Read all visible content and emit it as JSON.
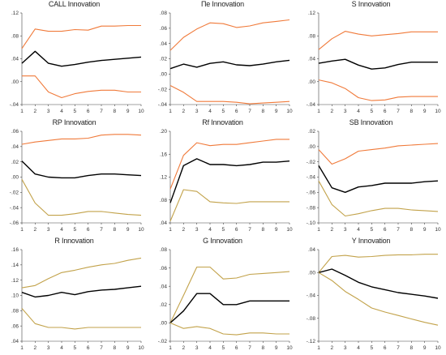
{
  "colors": {
    "response": "#000000",
    "bands_orange": "#f07a3a",
    "bands_olive": "#c2a24a"
  },
  "chart_data": [
    {
      "type": "line",
      "title": "CALL Innovation",
      "x": [
        1,
        2,
        3,
        4,
        5,
        6,
        7,
        8,
        9,
        10
      ],
      "ylim": [
        -0.04,
        0.12
      ],
      "yticks": [
        ".12",
        ".08",
        ".04",
        ".00",
        "-.04"
      ],
      "ytick_values": [
        0.12,
        0.08,
        0.04,
        0.0,
        -0.04
      ],
      "band_color": "orange",
      "series": [
        {
          "role": "upper",
          "values": [
            0.058,
            0.092,
            0.088,
            0.088,
            0.091,
            0.09,
            0.097,
            0.097,
            0.098,
            0.098
          ]
        },
        {
          "role": "response",
          "values": [
            0.032,
            0.053,
            0.032,
            0.027,
            0.03,
            0.034,
            0.037,
            0.039,
            0.041,
            0.043
          ]
        },
        {
          "role": "lower",
          "values": [
            0.01,
            0.01,
            -0.018,
            -0.028,
            -0.021,
            -0.017,
            -0.015,
            -0.015,
            -0.018,
            -0.018
          ]
        }
      ]
    },
    {
      "type": "line",
      "title": "Пе Innovation",
      "x": [
        1,
        2,
        3,
        4,
        5,
        6,
        7,
        8,
        9,
        10
      ],
      "ylim": [
        -0.04,
        0.08
      ],
      "yticks": [
        ".08",
        ".06",
        ".04",
        ".02",
        ".00",
        "-.02",
        "-.04"
      ],
      "ytick_values": [
        0.08,
        0.06,
        0.04,
        0.02,
        0.0,
        -0.02,
        -0.04
      ],
      "band_color": "orange",
      "series": [
        {
          "role": "upper",
          "values": [
            0.031,
            0.048,
            0.059,
            0.067,
            0.066,
            0.061,
            0.063,
            0.067,
            0.069,
            0.071
          ]
        },
        {
          "role": "response",
          "values": [
            0.007,
            0.013,
            0.009,
            0.014,
            0.016,
            0.012,
            0.011,
            0.013,
            0.016,
            0.018
          ]
        },
        {
          "role": "lower",
          "values": [
            -0.015,
            -0.024,
            -0.036,
            -0.036,
            -0.036,
            -0.037,
            -0.039,
            -0.038,
            -0.037,
            -0.036
          ]
        }
      ]
    },
    {
      "type": "line",
      "title": "S Innovation",
      "x": [
        1,
        2,
        3,
        4,
        5,
        6,
        7,
        8,
        9,
        10
      ],
      "ylim": [
        -0.04,
        0.12
      ],
      "yticks": [
        ".12",
        ".08",
        ".04",
        ".00",
        "-.04"
      ],
      "ytick_values": [
        0.12,
        0.08,
        0.04,
        0.0,
        -0.04
      ],
      "band_color": "orange",
      "series": [
        {
          "role": "upper",
          "values": [
            0.056,
            0.075,
            0.088,
            0.083,
            0.08,
            0.082,
            0.084,
            0.087,
            0.087,
            0.087
          ]
        },
        {
          "role": "response",
          "values": [
            0.032,
            0.036,
            0.039,
            0.029,
            0.022,
            0.024,
            0.03,
            0.034,
            0.034,
            0.034
          ]
        },
        {
          "role": "lower",
          "values": [
            0.003,
            -0.002,
            -0.012,
            -0.028,
            -0.033,
            -0.032,
            -0.027,
            -0.026,
            -0.026,
            -0.026
          ]
        }
      ]
    },
    {
      "type": "line",
      "title": "RP Innovation",
      "x": [
        1,
        2,
        3,
        4,
        5,
        6,
        7,
        8,
        9,
        10
      ],
      "ylim": [
        -0.06,
        0.06
      ],
      "yticks": [
        ".06",
        ".04",
        ".02",
        ".00",
        "-.02",
        "-.04",
        "-.06"
      ],
      "ytick_values": [
        0.06,
        0.04,
        0.02,
        0.0,
        -0.02,
        -0.04,
        -0.06
      ],
      "band_color": "mixed",
      "series": [
        {
          "role": "upper",
          "values": [
            0.043,
            0.046,
            0.048,
            0.05,
            0.05,
            0.051,
            0.055,
            0.056,
            0.056,
            0.055
          ]
        },
        {
          "role": "response",
          "values": [
            0.021,
            0.004,
            0.0,
            -0.001,
            -0.001,
            0.002,
            0.004,
            0.004,
            0.003,
            0.002
          ]
        },
        {
          "role": "lower",
          "values": [
            -0.003,
            -0.034,
            -0.05,
            -0.05,
            -0.048,
            -0.045,
            -0.045,
            -0.047,
            -0.049,
            -0.05
          ]
        }
      ]
    },
    {
      "type": "line",
      "title": "Rf Innovation",
      "x": [
        1,
        2,
        3,
        4,
        5,
        6,
        7,
        8,
        9,
        10
      ],
      "ylim": [
        0.04,
        0.2
      ],
      "yticks": [
        ".20",
        ".16",
        ".12",
        ".08",
        ".04"
      ],
      "ytick_values": [
        0.2,
        0.16,
        0.12,
        0.08,
        0.04
      ],
      "band_color": "mixed",
      "series": [
        {
          "role": "upper",
          "values": [
            0.099,
            0.158,
            0.18,
            0.175,
            0.177,
            0.177,
            0.18,
            0.183,
            0.186,
            0.186
          ]
        },
        {
          "role": "response",
          "values": [
            0.075,
            0.14,
            0.152,
            0.142,
            0.142,
            0.14,
            0.142,
            0.146,
            0.146,
            0.148
          ]
        },
        {
          "role": "lower",
          "values": [
            0.043,
            0.098,
            0.095,
            0.077,
            0.075,
            0.074,
            0.077,
            0.077,
            0.077,
            0.077
          ]
        }
      ]
    },
    {
      "type": "line",
      "title": "SB Innovation",
      "x": [
        1,
        2,
        3,
        4,
        5,
        6,
        7,
        8,
        9,
        10
      ],
      "ylim": [
        -0.1,
        0.02
      ],
      "yticks": [
        ".02",
        ".00",
        "-.02",
        "-.04",
        "-.06",
        "-.08",
        "-.10"
      ],
      "ytick_values": [
        0.02,
        0.0,
        -0.02,
        -0.04,
        -0.06,
        -0.08,
        -0.1
      ],
      "band_color": "mixed",
      "series": [
        {
          "role": "upper",
          "values": [
            -0.004,
            -0.023,
            -0.016,
            -0.006,
            -0.004,
            -0.002,
            0.001,
            0.002,
            0.003,
            0.004
          ]
        },
        {
          "role": "response",
          "values": [
            -0.025,
            -0.054,
            -0.06,
            -0.053,
            -0.051,
            -0.048,
            -0.048,
            -0.048,
            -0.046,
            -0.045
          ]
        },
        {
          "role": "lower",
          "values": [
            -0.045,
            -0.076,
            -0.091,
            -0.088,
            -0.084,
            -0.081,
            -0.081,
            -0.083,
            -0.084,
            -0.085
          ]
        }
      ]
    },
    {
      "type": "line",
      "title": "R Innovation",
      "x": [
        1,
        2,
        3,
        4,
        5,
        6,
        7,
        8,
        9,
        10
      ],
      "ylim": [
        0.04,
        0.16
      ],
      "yticks": [
        ".16",
        ".14",
        ".12",
        ".10",
        ".08",
        ".06",
        ".04"
      ],
      "ytick_values": [
        0.16,
        0.14,
        0.12,
        0.1,
        0.08,
        0.06,
        0.04
      ],
      "band_color": "olive",
      "series": [
        {
          "role": "upper",
          "values": [
            0.11,
            0.113,
            0.122,
            0.13,
            0.133,
            0.137,
            0.14,
            0.142,
            0.146,
            0.149
          ]
        },
        {
          "role": "response",
          "values": [
            0.104,
            0.098,
            0.1,
            0.104,
            0.101,
            0.105,
            0.107,
            0.108,
            0.11,
            0.112
          ]
        },
        {
          "role": "lower",
          "values": [
            0.083,
            0.063,
            0.058,
            0.058,
            0.056,
            0.058,
            0.058,
            0.058,
            0.058,
            0.058
          ]
        }
      ]
    },
    {
      "type": "line",
      "title": "G Innovation",
      "x": [
        1,
        2,
        3,
        4,
        5,
        6,
        7,
        8,
        9,
        10
      ],
      "ylim": [
        -0.02,
        0.08
      ],
      "yticks": [
        ".08",
        ".06",
        ".04",
        ".02",
        ".00",
        "-.02"
      ],
      "ytick_values": [
        0.08,
        0.06,
        0.04,
        0.02,
        0.0,
        -0.02
      ],
      "band_color": "olive",
      "series": [
        {
          "role": "upper",
          "values": [
            0.0,
            0.03,
            0.061,
            0.061,
            0.048,
            0.049,
            0.053,
            0.054,
            0.055,
            0.056
          ]
        },
        {
          "role": "response",
          "values": [
            0.0,
            0.013,
            0.032,
            0.032,
            0.02,
            0.02,
            0.024,
            0.024,
            0.024,
            0.024
          ]
        },
        {
          "role": "lower",
          "values": [
            0.0,
            -0.006,
            -0.004,
            -0.006,
            -0.012,
            -0.013,
            -0.011,
            -0.011,
            -0.012,
            -0.012
          ]
        }
      ]
    },
    {
      "type": "line",
      "title": "Y Innovation",
      "x": [
        1,
        2,
        3,
        4,
        5,
        6,
        7,
        8,
        9,
        10
      ],
      "ylim": [
        -0.12,
        0.04
      ],
      "yticks": [
        ".04",
        ".00",
        "-.04",
        "-.08",
        "-.12"
      ],
      "ytick_values": [
        0.04,
        0.0,
        -0.04,
        -0.08,
        -0.12
      ],
      "band_color": "olive",
      "series": [
        {
          "role": "upper",
          "values": [
            0.0,
            0.028,
            0.03,
            0.027,
            0.028,
            0.03,
            0.031,
            0.031,
            0.032,
            0.032
          ]
        },
        {
          "role": "response",
          "values": [
            0.0,
            0.006,
            -0.005,
            -0.017,
            -0.025,
            -0.03,
            -0.035,
            -0.038,
            -0.041,
            -0.045
          ]
        },
        {
          "role": "lower",
          "values": [
            0.0,
            -0.014,
            -0.033,
            -0.047,
            -0.062,
            -0.069,
            -0.075,
            -0.081,
            -0.087,
            -0.092
          ]
        }
      ]
    }
  ]
}
